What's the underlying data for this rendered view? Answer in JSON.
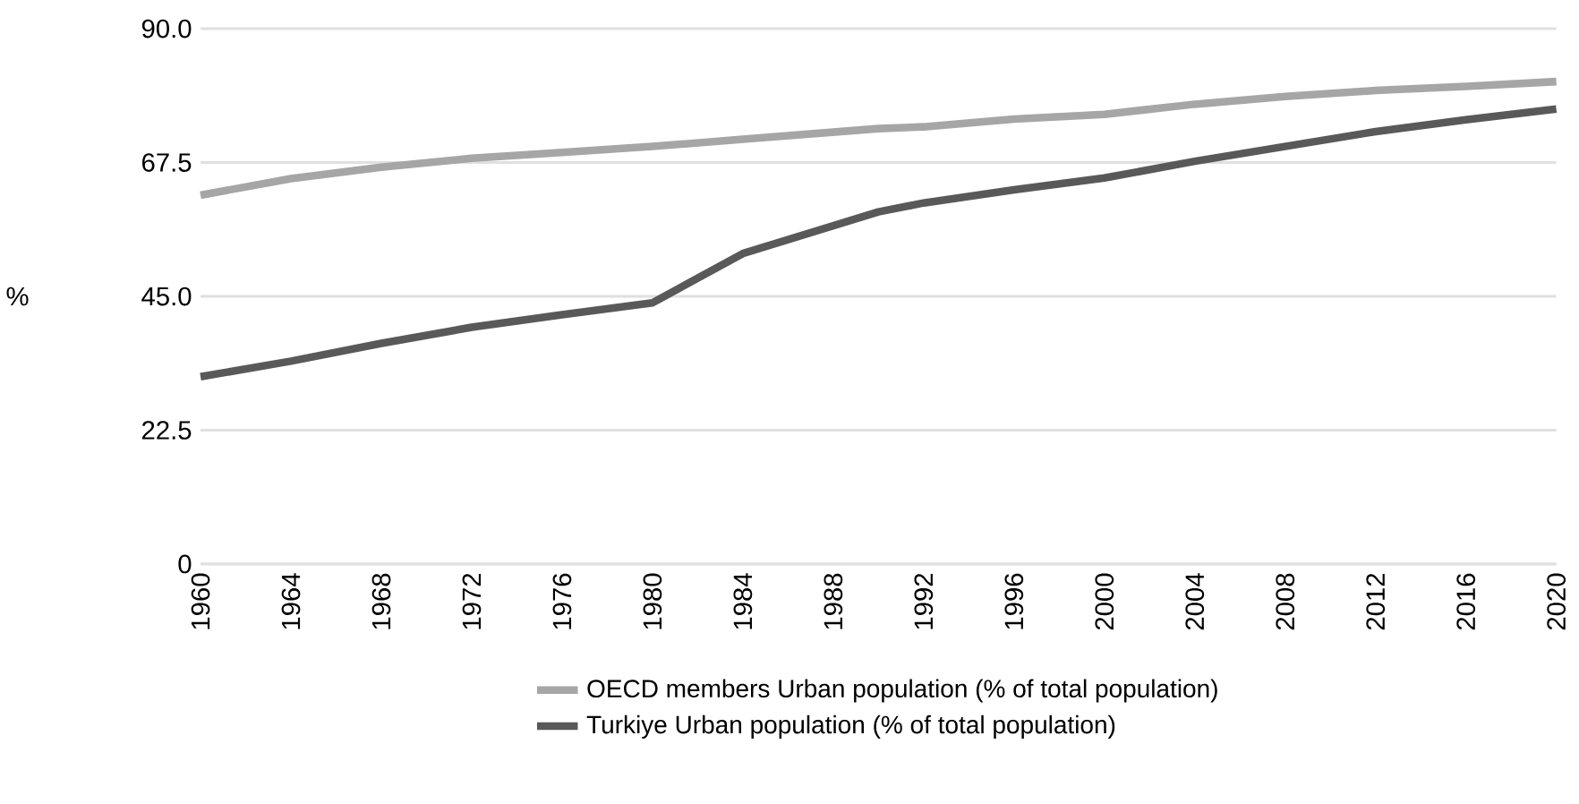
{
  "chart_data": {
    "type": "line",
    "ylabel": "%",
    "x": [
      1960,
      1964,
      1968,
      1972,
      1976,
      1980,
      1984,
      1990,
      1992,
      1996,
      2000,
      2004,
      2008,
      2012,
      2016,
      2020
    ],
    "series": [
      {
        "name": "OECD members Urban population (% of total population)",
        "color": "#a6a6a6",
        "values": [
          62.0,
          64.8,
          66.7,
          68.2,
          69.2,
          70.2,
          71.4,
          73.2,
          73.5,
          74.8,
          75.6,
          77.3,
          78.6,
          79.6,
          80.3,
          81.1
        ]
      },
      {
        "name": "Turkiye Urban population (% of total population)",
        "color": "#595959",
        "values": [
          31.5,
          34.1,
          37.1,
          39.8,
          41.9,
          43.9,
          52.2,
          59.2,
          60.7,
          62.9,
          64.9,
          67.7,
          70.2,
          72.7,
          74.7,
          76.5
        ]
      }
    ],
    "xlim": [
      1960,
      2020
    ],
    "ylim": [
      0,
      90
    ],
    "xticks": [
      1960,
      1964,
      1968,
      1972,
      1976,
      1980,
      1984,
      1988,
      1992,
      1996,
      2000,
      2004,
      2008,
      2012,
      2016,
      2020
    ],
    "yticks": [
      0,
      22.5,
      {
        "value": 45,
        "label": "45.0"
      },
      67.5,
      {
        "value": 90,
        "label": "90.0"
      }
    ],
    "grid": "y",
    "legend": "bottom",
    "marker": "none",
    "line_style": "solid"
  }
}
